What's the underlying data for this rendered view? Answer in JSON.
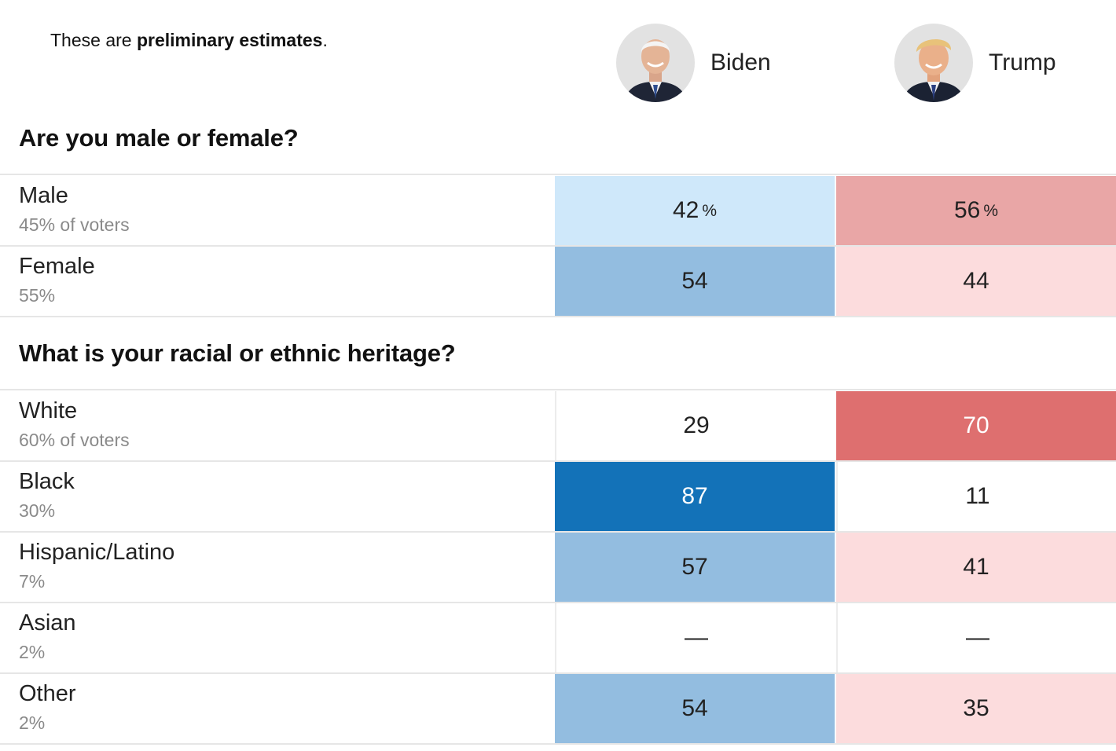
{
  "note": {
    "prefix": "These are ",
    "emphasis": "preliminary estimates",
    "suffix": "."
  },
  "candidates": [
    {
      "name": "Biden",
      "icon": "biden-portrait-icon"
    },
    {
      "name": "Trump",
      "icon": "trump-portrait-icon"
    }
  ],
  "colors": {
    "blue_scale": [
      "#ffffff",
      "#cfe8fa",
      "#93bde0",
      "#1372b8"
    ],
    "red_scale": [
      "#ffffff",
      "#fcdcdd",
      "#e9a6a6",
      "#de6f6f"
    ],
    "rule": "#e6e6e6"
  },
  "chart_data": {
    "type": "table",
    "title": "",
    "columns": [
      "Biden",
      "Trump"
    ],
    "unit": "%",
    "questions": [
      {
        "question": "Are you male or female?",
        "rows": [
          {
            "label": "Male",
            "share": "45% of voters",
            "biden": "42",
            "trump": "56",
            "biden_pct": "%",
            "trump_pct": "%",
            "biden_level": 1,
            "trump_level": 2
          },
          {
            "label": "Female",
            "share": "55%",
            "biden": "54",
            "trump": "44",
            "biden_level": 2,
            "trump_level": 1
          }
        ]
      },
      {
        "question": "What is your racial or ethnic heritage?",
        "rows": [
          {
            "label": "White",
            "share": "60% of voters",
            "biden": "29",
            "trump": "70",
            "biden_level": 0,
            "trump_level": 3
          },
          {
            "label": "Black",
            "share": "30%",
            "biden": "87",
            "trump": "11",
            "biden_level": 3,
            "trump_level": 0
          },
          {
            "label": "Hispanic/Latino",
            "share": "7%",
            "biden": "57",
            "trump": "41",
            "biden_level": 2,
            "trump_level": 1
          },
          {
            "label": "Asian",
            "share": "2%",
            "biden": "—",
            "trump": "—",
            "biden_level": 0,
            "trump_level": 0
          },
          {
            "label": "Other",
            "share": "2%",
            "biden": "54",
            "trump": "35",
            "biden_level": 2,
            "trump_level": 1
          }
        ]
      }
    ]
  }
}
